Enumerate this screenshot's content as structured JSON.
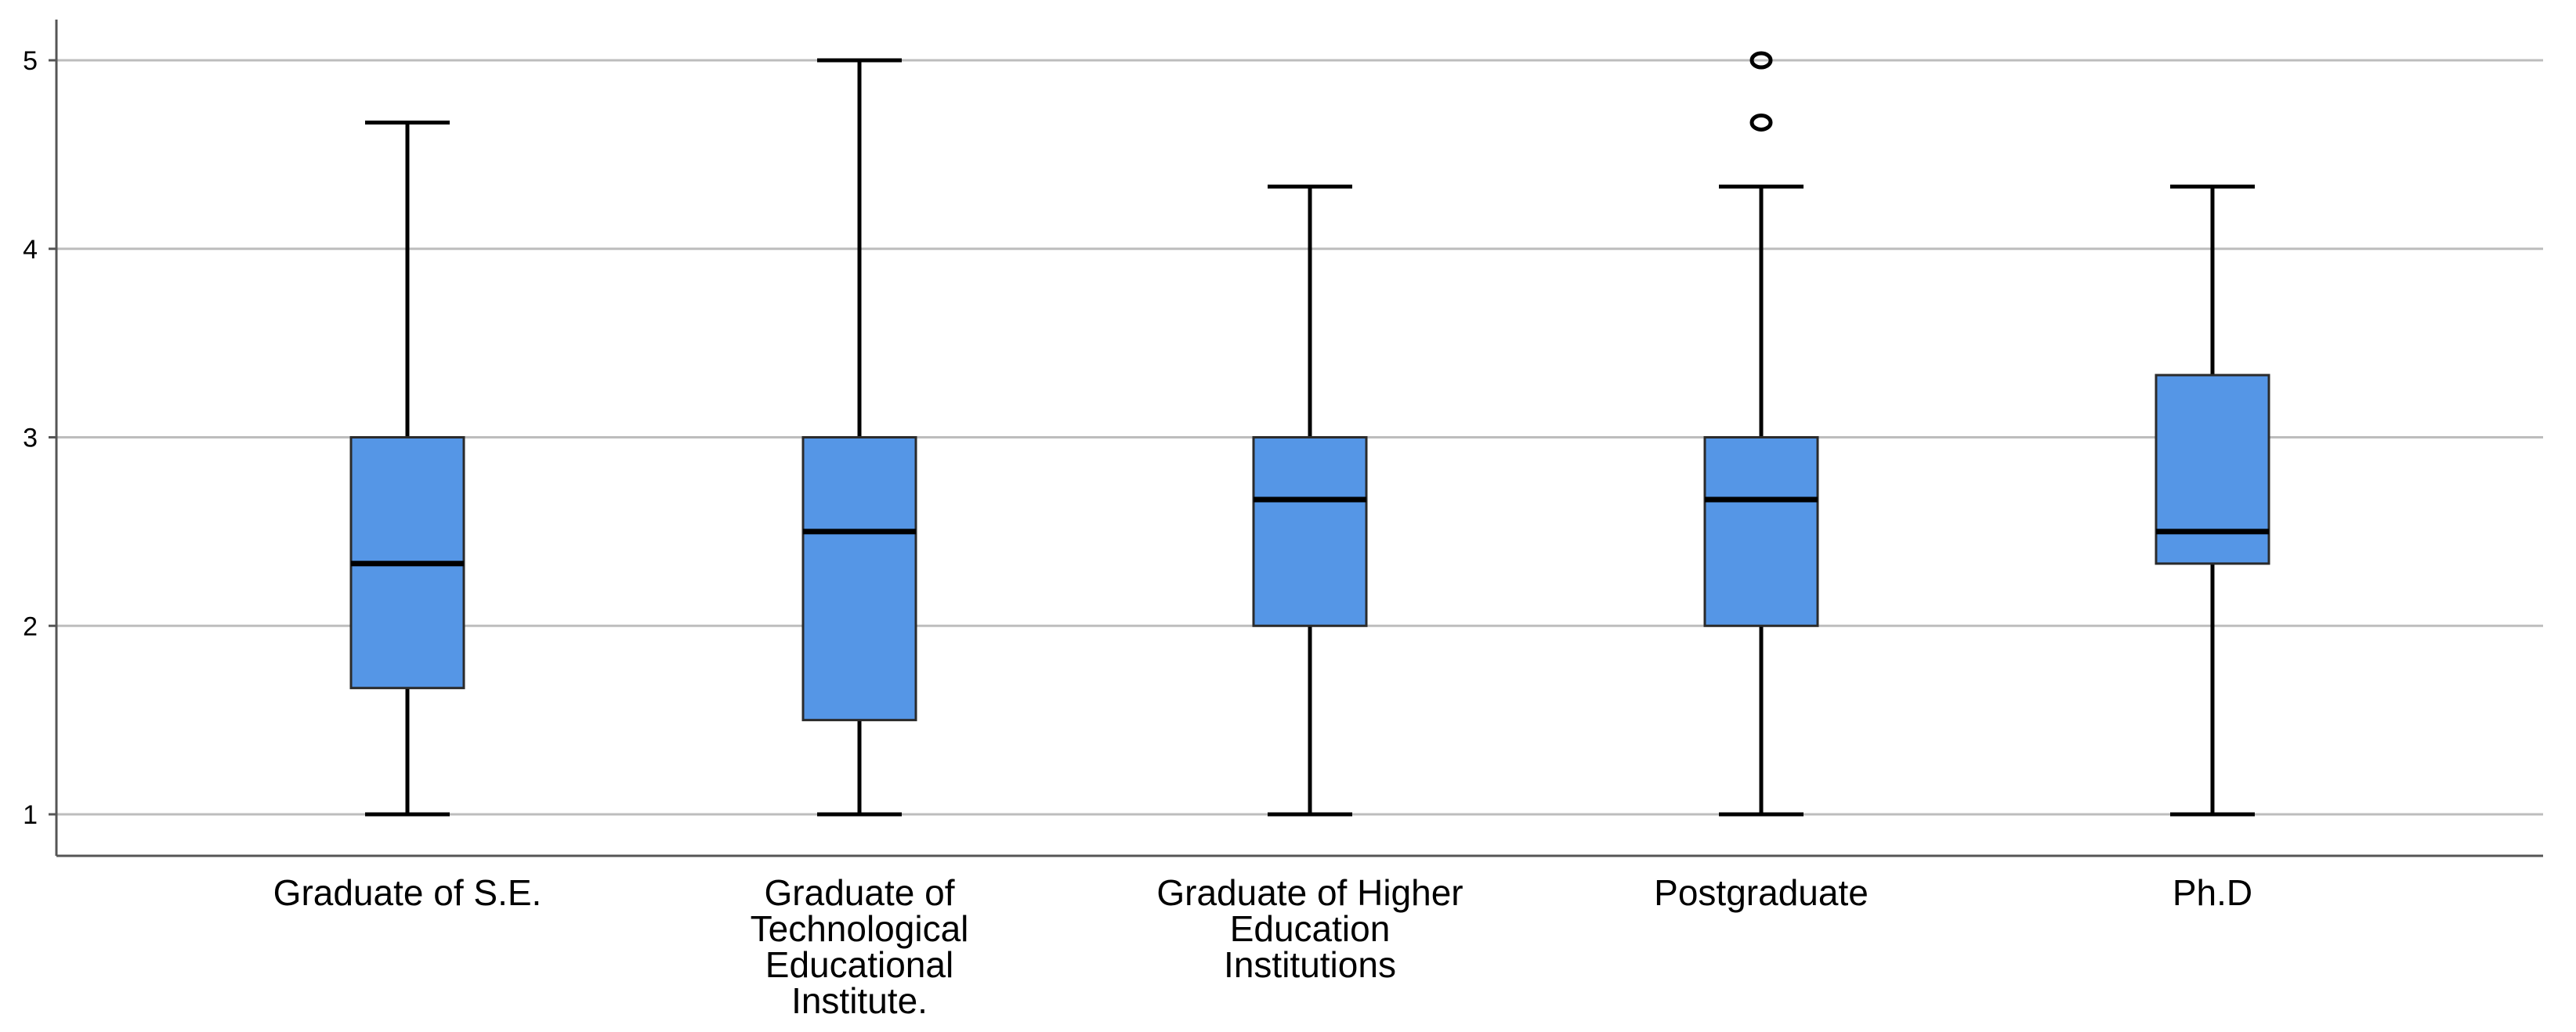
{
  "chart_data": {
    "type": "boxplot",
    "title": "",
    "xlabel": "",
    "ylabel": "",
    "ylim": [
      0.78,
      5.22
    ],
    "yticks": [
      1,
      2,
      3,
      4,
      5
    ],
    "grid": true,
    "box_color": "#5596E6",
    "categories": [
      [
        "Graduate of S.E."
      ],
      [
        "Graduate of",
        "Technological",
        "Educational",
        "Institute."
      ],
      [
        "Graduate of Higher",
        "Education",
        "Institutions"
      ],
      [
        "Postgraduate"
      ],
      [
        "Ph.D"
      ]
    ],
    "boxes": [
      {
        "min": 1.0,
        "q1": 1.67,
        "median": 2.33,
        "q3": 3.0,
        "max": 4.67,
        "outliers": []
      },
      {
        "min": 1.0,
        "q1": 1.5,
        "median": 2.5,
        "q3": 3.0,
        "max": 5.0,
        "outliers": []
      },
      {
        "min": 1.0,
        "q1": 2.0,
        "median": 2.67,
        "q3": 3.0,
        "max": 4.33,
        "outliers": []
      },
      {
        "min": 1.0,
        "q1": 2.0,
        "median": 2.67,
        "q3": 3.0,
        "max": 4.33,
        "outliers": [
          4.67,
          5.0
        ]
      },
      {
        "min": 1.0,
        "q1": 2.33,
        "median": 2.5,
        "q3": 3.33,
        "max": 4.33,
        "outliers": []
      }
    ]
  }
}
